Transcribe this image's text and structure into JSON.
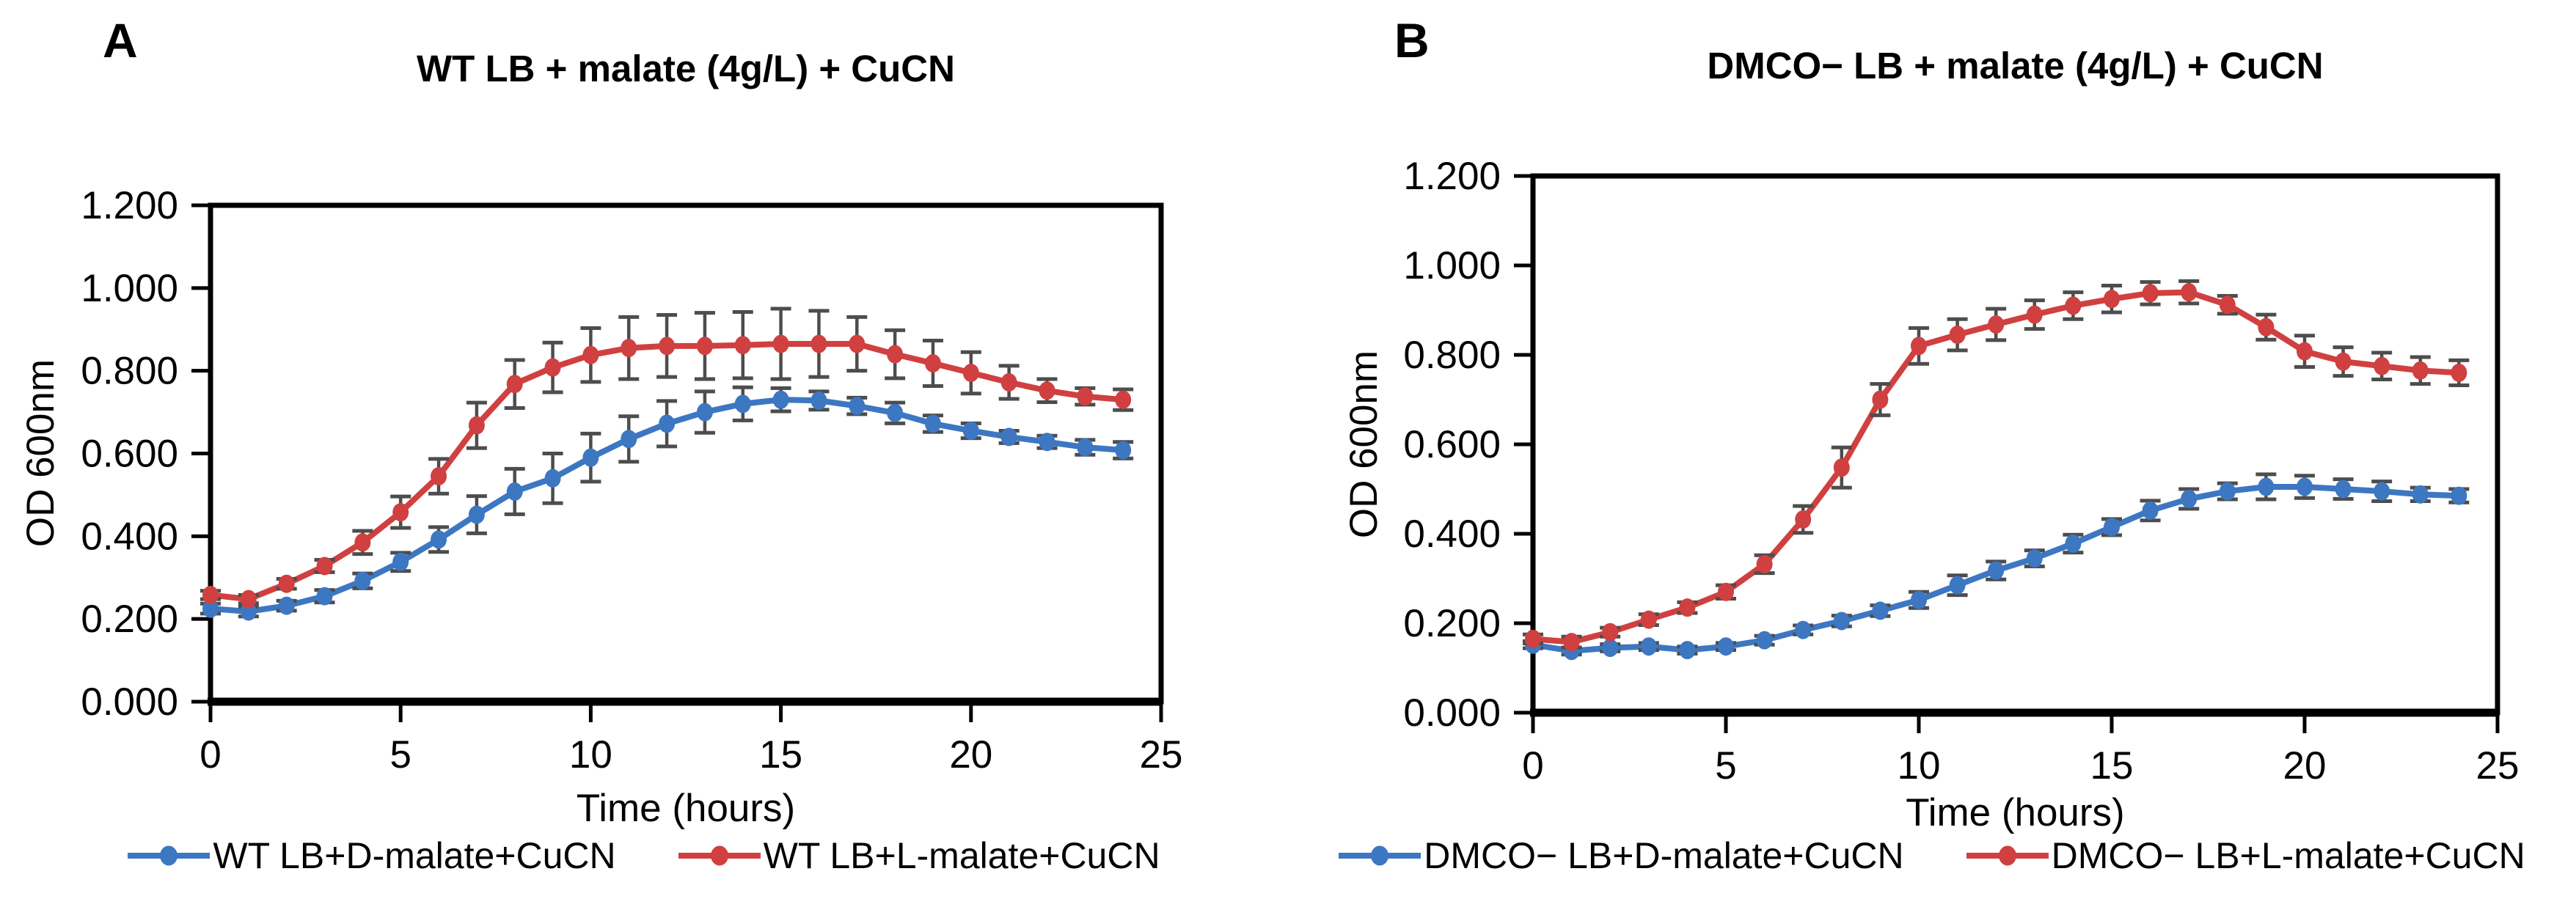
{
  "background_color": "#ffffff",
  "text_color": "#000000",
  "error_bar_color": "#4d4d4d",
  "accent_colors": {
    "blue_series": "#3d77c2",
    "red_series": "#d04040"
  },
  "chart_data": [
    {
      "type": "line",
      "panel_label": "A",
      "title": "WT LB + malate (4g/L) + CuCN",
      "xlabel": "Time (hours)",
      "ylabel": "OD 600nm",
      "x": [
        0,
        1,
        2,
        3,
        4,
        5,
        6,
        7,
        8,
        9,
        10,
        11,
        12,
        13,
        14,
        15,
        16,
        17,
        18,
        19,
        20,
        21,
        22,
        23,
        24
      ],
      "xlim": [
        0,
        25
      ],
      "ylim": [
        0,
        1.2
      ],
      "x_ticks": [
        "0",
        "5",
        "10",
        "15",
        "20",
        "25"
      ],
      "x_tick_values": [
        0,
        5,
        10,
        15,
        20,
        25
      ],
      "y_tick_values": [
        0,
        0.2,
        0.4,
        0.6,
        0.8,
        1.0,
        1.2
      ],
      "y_tick_labels": [
        "0.000",
        "0.200",
        "0.400",
        "0.600",
        "0.800",
        "1.000",
        "1.200"
      ],
      "grid": false,
      "legend_position": "bottom",
      "series": [
        {
          "name": "WT LB+D-malate+CuCN",
          "color": "#3d77c2",
          "values": [
            0.225,
            0.218,
            0.232,
            0.255,
            0.292,
            0.338,
            0.392,
            0.452,
            0.508,
            0.54,
            0.59,
            0.635,
            0.672,
            0.7,
            0.72,
            0.73,
            0.728,
            0.715,
            0.698,
            0.672,
            0.655,
            0.64,
            0.628,
            0.615,
            0.608
          ],
          "errors": [
            0.012,
            0.012,
            0.012,
            0.015,
            0.018,
            0.022,
            0.03,
            0.045,
            0.055,
            0.06,
            0.058,
            0.055,
            0.055,
            0.05,
            0.04,
            0.028,
            0.022,
            0.02,
            0.025,
            0.02,
            0.018,
            0.015,
            0.015,
            0.018,
            0.02
          ]
        },
        {
          "name": "WT LB+L-malate+CuCN",
          "color": "#d04040",
          "values": [
            0.258,
            0.248,
            0.285,
            0.328,
            0.385,
            0.458,
            0.545,
            0.668,
            0.768,
            0.808,
            0.838,
            0.855,
            0.86,
            0.86,
            0.862,
            0.865,
            0.865,
            0.865,
            0.84,
            0.818,
            0.795,
            0.772,
            0.752,
            0.738,
            0.73
          ],
          "errors": [
            0.01,
            0.01,
            0.012,
            0.015,
            0.028,
            0.038,
            0.042,
            0.055,
            0.058,
            0.06,
            0.065,
            0.075,
            0.075,
            0.08,
            0.08,
            0.085,
            0.08,
            0.065,
            0.058,
            0.055,
            0.05,
            0.04,
            0.028,
            0.02,
            0.025
          ]
        }
      ]
    },
    {
      "type": "line",
      "panel_label": "B",
      "title": "DMCO− LB + malate (4g/L) + CuCN",
      "xlabel": "Time (hours)",
      "ylabel": "OD 600nm",
      "x": [
        0,
        1,
        2,
        3,
        4,
        5,
        6,
        7,
        8,
        9,
        10,
        11,
        12,
        13,
        14,
        15,
        16,
        17,
        18,
        19,
        20,
        21,
        22,
        23,
        24
      ],
      "xlim": [
        0,
        25
      ],
      "ylim": [
        0,
        1.2
      ],
      "x_ticks": [
        "0",
        "5",
        "10",
        "15",
        "20",
        "25"
      ],
      "x_tick_values": [
        0,
        5,
        10,
        15,
        20,
        25
      ],
      "y_tick_values": [
        0,
        0.2,
        0.4,
        0.6,
        0.8,
        1.0,
        1.2
      ],
      "y_tick_labels": [
        "0.000",
        "0.200",
        "0.400",
        "0.600",
        "0.800",
        "1.000",
        "1.200"
      ],
      "grid": false,
      "legend_position": "bottom",
      "series": [
        {
          "name": "DMCO− LB+D-malate+CuCN",
          "color": "#3d77c2",
          "values": [
            0.152,
            0.138,
            0.145,
            0.148,
            0.14,
            0.148,
            0.162,
            0.185,
            0.205,
            0.228,
            0.252,
            0.285,
            0.318,
            0.345,
            0.378,
            0.415,
            0.452,
            0.478,
            0.495,
            0.505,
            0.505,
            0.5,
            0.495,
            0.488,
            0.485
          ],
          "errors": [
            0.008,
            0.008,
            0.008,
            0.008,
            0.008,
            0.008,
            0.01,
            0.01,
            0.012,
            0.012,
            0.018,
            0.022,
            0.02,
            0.018,
            0.02,
            0.018,
            0.022,
            0.022,
            0.018,
            0.028,
            0.025,
            0.022,
            0.022,
            0.015,
            0.015
          ]
        },
        {
          "name": "DMCO− LB+L-malate+CuCN",
          "color": "#d04040",
          "values": [
            0.165,
            0.158,
            0.18,
            0.208,
            0.235,
            0.27,
            0.332,
            0.432,
            0.548,
            0.7,
            0.82,
            0.845,
            0.868,
            0.89,
            0.91,
            0.925,
            0.938,
            0.94,
            0.912,
            0.862,
            0.808,
            0.785,
            0.775,
            0.765,
            0.76
          ],
          "errors": [
            0.01,
            0.012,
            0.01,
            0.012,
            0.012,
            0.015,
            0.02,
            0.03,
            0.045,
            0.035,
            0.04,
            0.035,
            0.035,
            0.032,
            0.03,
            0.03,
            0.025,
            0.025,
            0.02,
            0.028,
            0.035,
            0.032,
            0.03,
            0.03,
            0.028
          ]
        }
      ]
    }
  ]
}
